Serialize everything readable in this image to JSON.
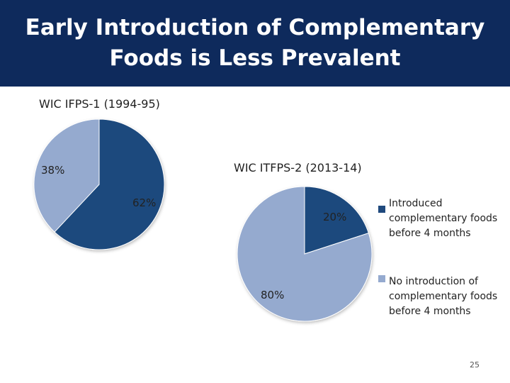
{
  "slide": {
    "title_line1": "Early Introduction of Complementary",
    "title_line2": "Foods is Less Prevalent",
    "page_number": "25"
  },
  "colors": {
    "header": "#0e2a5c",
    "introduced": "#1f497d",
    "no_introduction": "#95aacf"
  },
  "chart_data": [
    {
      "type": "pie",
      "title": "WIC IFPS-1 (1994-95)",
      "categories": [
        "Introduced complementary foods before 4 months",
        "No introduction of complementary foods before 4 months"
      ],
      "values": [
        62,
        38
      ],
      "value_labels": [
        "62%",
        "38%"
      ]
    },
    {
      "type": "pie",
      "title": "WIC ITFPS-2 (2013-14)",
      "categories": [
        "Introduced complementary foods before 4 months",
        "No introduction of complementary foods before 4 months"
      ],
      "values": [
        20,
        80
      ],
      "value_labels": [
        "20%",
        "80%"
      ],
      "legend": [
        {
          "label": "Introduced complementary foods before 4 months",
          "lines": [
            "Introduced",
            "complementary foods",
            "before 4 months"
          ]
        },
        {
          "label": "No introduction of complementary foods before 4 months",
          "lines": [
            "No introduction of",
            "complementary foods",
            "before 4 months"
          ]
        }
      ]
    }
  ]
}
